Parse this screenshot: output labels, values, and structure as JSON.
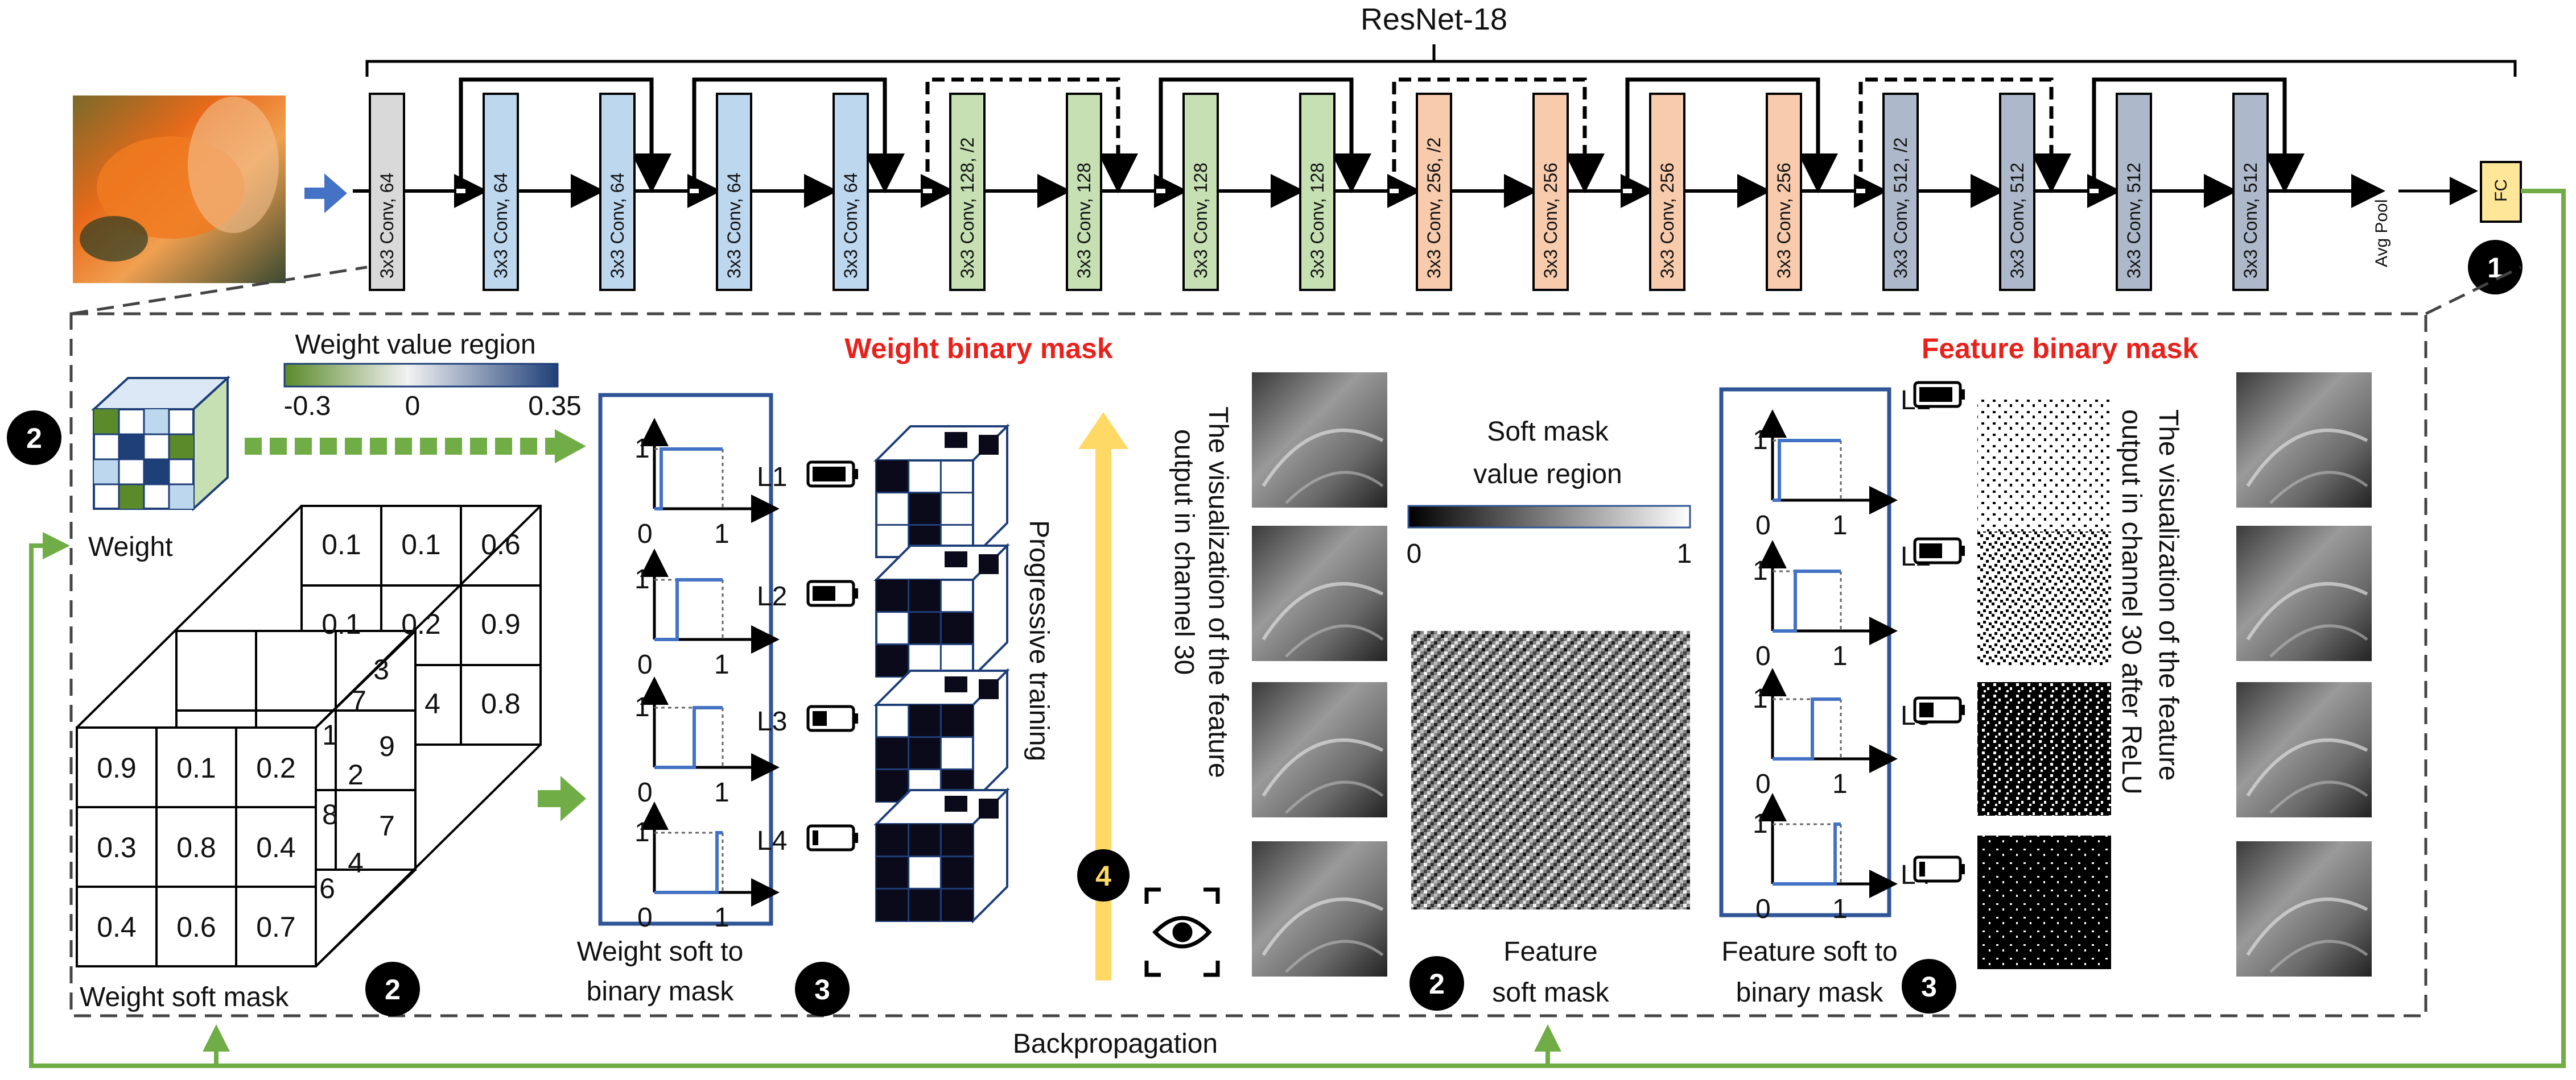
{
  "top_title": "ResNet-18",
  "conv_blocks": [
    {
      "label": "3x3 Conv, 64",
      "color": "#d9d9d9"
    },
    {
      "label": "3x3 Conv, 64",
      "color": "#bdd7ee"
    },
    {
      "label": "3x3 Conv, 64",
      "color": "#bdd7ee"
    },
    {
      "label": "3x3 Conv, 64",
      "color": "#bdd7ee"
    },
    {
      "label": "3x3 Conv, 64",
      "color": "#bdd7ee"
    },
    {
      "label": "3x3 Conv, 128, /2",
      "color": "#c6e0b4"
    },
    {
      "label": "3x3 Conv, 128",
      "color": "#c6e0b4"
    },
    {
      "label": "3x3 Conv, 128",
      "color": "#c6e0b4"
    },
    {
      "label": "3x3 Conv, 128",
      "color": "#c6e0b4"
    },
    {
      "label": "3x3 Conv, 256, /2",
      "color": "#f8cbad"
    },
    {
      "label": "3x3 Conv, 256",
      "color": "#f8cbad"
    },
    {
      "label": "3x3 Conv, 256",
      "color": "#f8cbad"
    },
    {
      "label": "3x3 Conv, 256",
      "color": "#f8cbad"
    },
    {
      "label": "3x3 Conv, 512, /2",
      "color": "#adb9ca"
    },
    {
      "label": "3x3 Conv, 512",
      "color": "#adb9ca"
    },
    {
      "label": "3x3 Conv, 512",
      "color": "#adb9ca"
    },
    {
      "label": "3x3 Conv, 512",
      "color": "#adb9ca"
    }
  ],
  "avg_pool": "Avg Pool",
  "fc": "FC",
  "colors": {
    "green_arrow": "#70ad47",
    "blue_frame": "#2f5597",
    "yellow_arrow": "#ffd966",
    "blue_arrow": "#4472c4",
    "red_title": "#e8211c",
    "fc_fill": "#ffe699"
  },
  "step_badges": {
    "one": "1",
    "two": "2",
    "three": "3",
    "four": "4"
  },
  "weight_value_region": {
    "title": "Weight value region",
    "min": "-0.3",
    "mid": "0",
    "max": "0.35"
  },
  "weight_label": "Weight",
  "soft_mask_front": [
    "0.9",
    "0.1",
    "0.2",
    "0.3",
    "0.8",
    "0.4",
    "0.4",
    "0.6",
    "0.7"
  ],
  "soft_mask_back": [
    "0.1",
    "0.1",
    "0.6",
    "0.1",
    "0.2",
    "0.9",
    "4",
    "0.8"
  ],
  "soft_mask_mid_partial": [
    "3",
    "7",
    "9",
    "1",
    "2",
    "8",
    "7",
    "4",
    "6"
  ],
  "weight_soft_mask_label": "Weight soft mask",
  "step_plot_labels": {
    "one": "1",
    "zero": "0"
  },
  "weight_soft_to_binary": [
    "Weight soft to",
    "binary mask"
  ],
  "levels": [
    "L1",
    "L2",
    "L3",
    "L4"
  ],
  "weight_binary_mask_title": "Weight binary mask",
  "progressive_training": "Progressive training",
  "visualization_left": [
    "The visualization of the feature",
    "output in channel 30"
  ],
  "soft_mask_value_region": {
    "title_line1": "Soft mask",
    "title_line2": "value region",
    "min": "0",
    "max": "1"
  },
  "feature_soft_mask": [
    "Feature",
    "soft mask"
  ],
  "feature_soft_to_binary": [
    "Feature soft to",
    "binary mask"
  ],
  "feature_binary_mask_title": "Feature binary mask",
  "visualization_right": [
    "The visualization of the feature",
    "output in channel 30 after ReLU"
  ],
  "backpropagation": "Backpropagation"
}
